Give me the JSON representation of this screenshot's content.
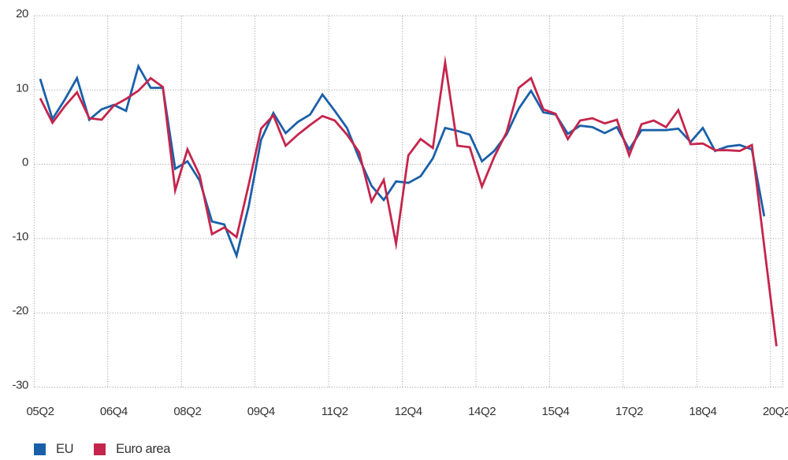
{
  "chart_data": {
    "type": "line",
    "title": "",
    "grid": "dotted",
    "legend_position": "bottom-left",
    "x_axis": {
      "tick_labels": [
        "05Q2",
        "06Q4",
        "08Q2",
        "09Q4",
        "11Q2",
        "12Q4",
        "14Q2",
        "15Q4",
        "17Q2",
        "18Q4",
        "20Q2"
      ],
      "all_quarters": [
        "05Q2",
        "05Q3",
        "05Q4",
        "06Q1",
        "06Q2",
        "06Q3",
        "06Q4",
        "07Q1",
        "07Q2",
        "07Q3",
        "07Q4",
        "08Q1",
        "08Q2",
        "08Q3",
        "08Q4",
        "09Q1",
        "09Q2",
        "09Q3",
        "09Q4",
        "10Q1",
        "10Q2",
        "10Q3",
        "10Q4",
        "11Q1",
        "11Q2",
        "11Q3",
        "11Q4",
        "12Q1",
        "12Q2",
        "12Q3",
        "12Q4",
        "13Q1",
        "13Q2",
        "13Q3",
        "13Q4",
        "14Q1",
        "14Q2",
        "14Q3",
        "14Q4",
        "15Q1",
        "15Q2",
        "15Q3",
        "15Q4",
        "16Q1",
        "16Q2",
        "16Q3",
        "16Q4",
        "17Q1",
        "17Q2",
        "17Q3",
        "17Q4",
        "18Q1",
        "18Q2",
        "18Q3",
        "18Q4",
        "19Q1",
        "19Q2",
        "19Q3",
        "19Q4",
        "20Q1",
        "20Q2"
      ]
    },
    "y_axis": {
      "ticks": [
        20,
        10,
        0,
        -10,
        -20,
        -30
      ],
      "min": -30,
      "max": 20
    },
    "series": [
      {
        "name": "EU",
        "color": "#1A60A9",
        "values": [
          11.5,
          6.1,
          8.7,
          11.6,
          6.0,
          7.4,
          8.0,
          7.2,
          13.2,
          10.3,
          10.3,
          -0.6,
          0.4,
          -2.2,
          -7.7,
          -8.1,
          -12.3,
          -5.6,
          3.3,
          6.9,
          4.2,
          5.7,
          6.7,
          9.4,
          7.2,
          4.9,
          0.8,
          -2.9,
          -4.8,
          -2.3,
          -2.5,
          -1.6,
          0.8,
          4.9,
          4.5,
          4.0,
          0.4,
          1.8,
          4.0,
          7.5,
          9.9,
          7.0,
          6.7,
          4.1,
          5.2,
          5.0,
          4.2,
          5.0,
          2.0,
          4.6,
          4.6,
          4.6,
          4.8,
          3.0,
          4.9,
          1.8,
          2.4,
          2.6,
          2.0,
          -7.0,
          null
        ]
      },
      {
        "name": "Euro area",
        "color": "#C5254C",
        "values": [
          8.9,
          5.6,
          7.8,
          9.7,
          6.2,
          6.0,
          7.9,
          8.8,
          9.9,
          11.6,
          10.4,
          -3.5,
          2.0,
          -1.5,
          -9.4,
          -8.5,
          -9.8,
          -2.7,
          4.8,
          6.6,
          2.5,
          4.0,
          5.3,
          6.5,
          5.9,
          4.0,
          1.6,
          -5.0,
          -2.1,
          -10.7,
          1.2,
          3.4,
          2.2,
          13.7,
          2.5,
          2.3,
          -3.0,
          1.0,
          4.3,
          10.3,
          11.6,
          7.4,
          6.8,
          3.4,
          5.9,
          6.2,
          5.5,
          6.0,
          1.2,
          5.4,
          5.9,
          5.0,
          7.3,
          2.7,
          2.8,
          1.9,
          1.9,
          1.8,
          2.6,
          -11.0,
          -24.5
        ]
      }
    ],
    "colors": {
      "grid": "#969696",
      "tick_text": "#333333"
    }
  }
}
